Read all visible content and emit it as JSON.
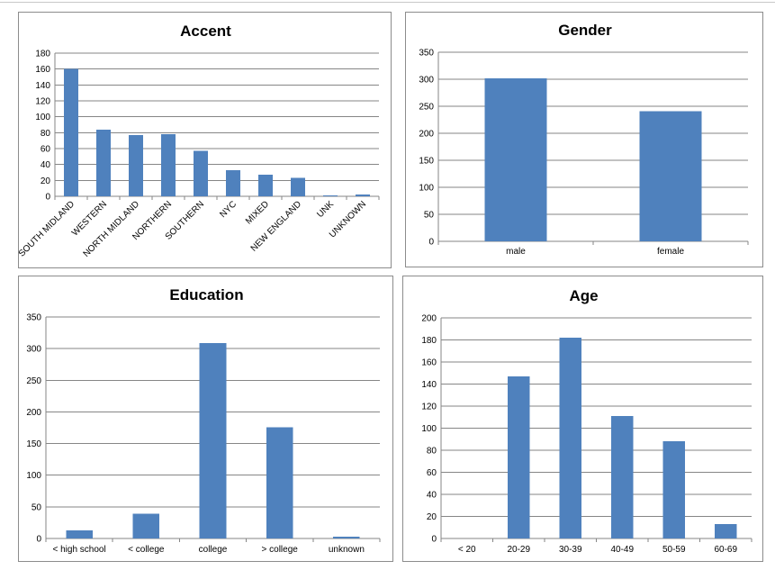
{
  "colors": {
    "bar": "#4f81bd"
  },
  "chart_data": [
    {
      "type": "bar",
      "title": "Accent",
      "categories": [
        "SOUTH MIDLAND",
        "WESTERN",
        "NORTH MIDLAND",
        "NORTHERN",
        "SOUTHERN",
        "NYC",
        "MIXED",
        "NEW ENGLAND",
        "UNK",
        "UNKNOWN"
      ],
      "values": [
        160,
        84,
        77,
        78,
        57,
        33,
        27,
        23,
        1,
        2
      ],
      "ylim": [
        0,
        180
      ],
      "yticks": [
        0,
        20,
        40,
        60,
        80,
        100,
        120,
        140,
        160,
        180
      ],
      "rotated_labels": true,
      "grid": true,
      "xlabel": "",
      "ylabel": ""
    },
    {
      "type": "bar",
      "title": "Gender",
      "categories": [
        "male",
        "female"
      ],
      "values": [
        302,
        241
      ],
      "ylim": [
        0,
        350
      ],
      "yticks": [
        0,
        50,
        100,
        150,
        200,
        250,
        300,
        350
      ],
      "rotated_labels": false,
      "grid": true,
      "xlabel": "",
      "ylabel": ""
    },
    {
      "type": "bar",
      "title": "Education",
      "categories": [
        "< high school",
        "< college",
        "college",
        "> college",
        "unknown"
      ],
      "values": [
        13,
        39,
        309,
        176,
        3
      ],
      "ylim": [
        0,
        350
      ],
      "yticks": [
        0,
        50,
        100,
        150,
        200,
        250,
        300,
        350
      ],
      "rotated_labels": false,
      "grid": true,
      "xlabel": "",
      "ylabel": ""
    },
    {
      "type": "bar",
      "title": "Age",
      "categories": [
        "< 20",
        "20-29",
        "30-39",
        "40-49",
        "50-59",
        "60-69"
      ],
      "values": [
        0,
        147,
        182,
        111,
        88,
        13
      ],
      "ylim": [
        0,
        200
      ],
      "yticks": [
        0,
        20,
        40,
        60,
        80,
        100,
        120,
        140,
        160,
        180,
        200
      ],
      "rotated_labels": false,
      "grid": true,
      "xlabel": "",
      "ylabel": ""
    }
  ]
}
